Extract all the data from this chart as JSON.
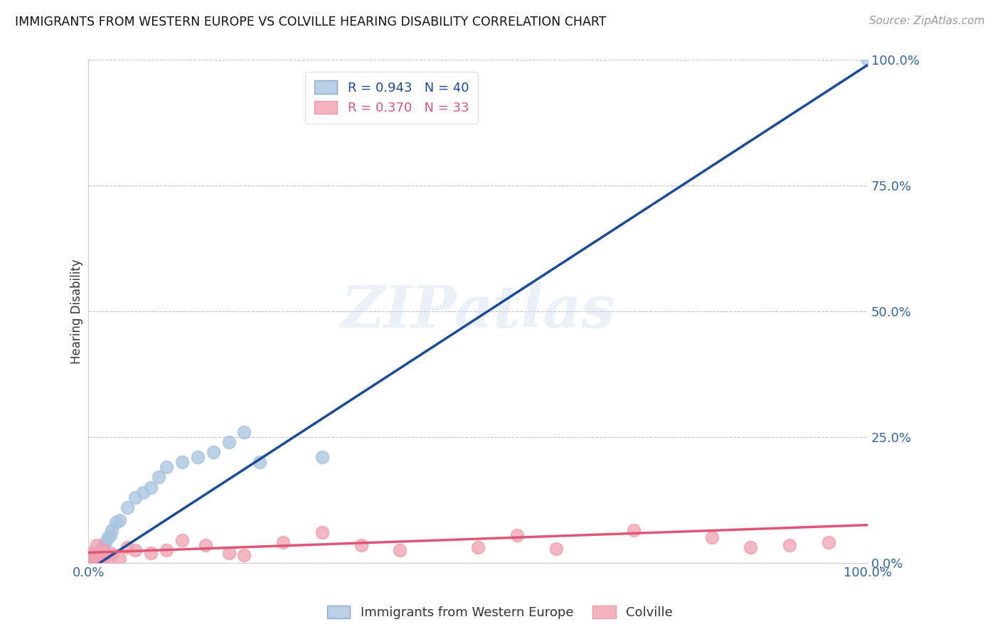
{
  "title": "IMMIGRANTS FROM WESTERN EUROPE VS COLVILLE HEARING DISABILITY CORRELATION CHART",
  "source": "Source: ZipAtlas.com",
  "ylabel": "Hearing Disability",
  "y_ticks": [
    "0.0%",
    "25.0%",
    "50.0%",
    "75.0%",
    "100.0%"
  ],
  "y_tick_vals": [
    0,
    25,
    50,
    75,
    100
  ],
  "legend_blue_r": "0.943",
  "legend_blue_n": "40",
  "legend_pink_r": "0.370",
  "legend_pink_n": "33",
  "legend_label_blue": "Immigrants from Western Europe",
  "legend_label_pink": "Colville",
  "blue_color": "#A8C4E0",
  "pink_color": "#F0A0B0",
  "blue_line_color": "#1A4A9A",
  "pink_line_color": "#E05575",
  "watermark": "ZIPatlas",
  "blue_scatter_x": [
    0.1,
    0.2,
    0.3,
    0.4,
    0.5,
    0.6,
    0.7,
    0.8,
    0.9,
    1.0,
    1.1,
    1.2,
    1.3,
    1.4,
    1.5,
    1.6,
    1.7,
    1.8,
    1.9,
    2.0,
    2.2,
    2.5,
    2.8,
    3.0,
    3.5,
    4.0,
    5.0,
    6.0,
    7.0,
    8.0,
    9.0,
    10.0,
    12.0,
    14.0,
    16.0,
    18.0,
    20.0,
    22.0,
    30.0,
    100.0
  ],
  "blue_scatter_y": [
    0.2,
    0.3,
    0.5,
    0.4,
    0.6,
    0.8,
    0.5,
    1.0,
    0.7,
    1.2,
    1.5,
    0.8,
    1.8,
    2.0,
    1.5,
    2.5,
    2.0,
    3.0,
    2.8,
    3.5,
    4.0,
    5.0,
    5.5,
    6.5,
    8.0,
    8.5,
    11.0,
    13.0,
    14.0,
    15.0,
    17.0,
    19.0,
    20.0,
    21.0,
    22.0,
    24.0,
    26.0,
    20.0,
    21.0,
    100.0
  ],
  "pink_scatter_x": [
    0.1,
    0.3,
    0.5,
    0.7,
    0.9,
    1.1,
    1.3,
    1.5,
    1.8,
    2.0,
    2.5,
    3.0,
    4.0,
    5.0,
    6.0,
    8.0,
    10.0,
    12.0,
    15.0,
    18.0,
    20.0,
    25.0,
    30.0,
    35.0,
    40.0,
    50.0,
    55.0,
    60.0,
    70.0,
    80.0,
    85.0,
    90.0,
    95.0
  ],
  "pink_scatter_y": [
    1.5,
    2.0,
    0.5,
    1.0,
    0.8,
    3.5,
    1.5,
    1.2,
    0.5,
    2.5,
    1.0,
    1.8,
    0.8,
    3.0,
    2.5,
    2.0,
    2.5,
    4.5,
    3.5,
    2.0,
    1.5,
    4.0,
    6.0,
    3.5,
    2.5,
    3.0,
    5.5,
    2.8,
    6.5,
    5.0,
    3.0,
    3.5,
    4.0
  ]
}
